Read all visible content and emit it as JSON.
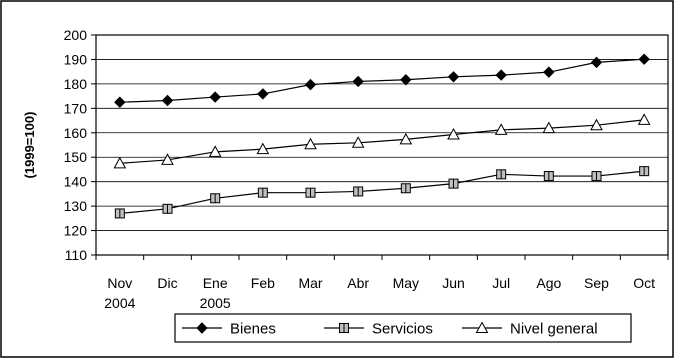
{
  "chart_data": {
    "type": "line",
    "title": "",
    "xlabel": "",
    "ylabel": "(1999=100)",
    "ylim": [
      110,
      200
    ],
    "yticks": [
      110,
      120,
      130,
      140,
      150,
      160,
      170,
      180,
      190,
      200
    ],
    "grid": true,
    "legend_position": "bottom",
    "categories": [
      [
        "Nov",
        "2004"
      ],
      [
        "Dic",
        ""
      ],
      [
        "Ene",
        "2005"
      ],
      [
        "Feb",
        ""
      ],
      [
        "Mar",
        ""
      ],
      [
        "Abr",
        ""
      ],
      [
        "May",
        ""
      ],
      [
        "Jun",
        ""
      ],
      [
        "Jul",
        ""
      ],
      [
        "Ago",
        ""
      ],
      [
        "Sep",
        ""
      ],
      [
        "Oct",
        ""
      ]
    ],
    "series": [
      {
        "name": "Bienes",
        "marker": "diamond",
        "values": [
          172.5,
          173.2,
          174.6,
          175.9,
          179.7,
          181.0,
          181.7,
          182.9,
          183.6,
          184.8,
          188.8,
          190.1
        ]
      },
      {
        "name": "Servicios",
        "marker": "square",
        "values": [
          127.0,
          128.9,
          133.2,
          135.5,
          135.5,
          136.0,
          137.3,
          139.2,
          143.0,
          142.3,
          142.3,
          144.3
        ]
      },
      {
        "name": "Nivel general",
        "marker": "triangle",
        "values": [
          147.5,
          148.9,
          152.2,
          153.3,
          155.3,
          155.9,
          157.3,
          159.3,
          161.2,
          161.9,
          163.1,
          165.3
        ]
      }
    ],
    "colors": {
      "line": "#000000",
      "square_marker_fill": "#bfbfbf",
      "diamond_marker_fill": "#000000",
      "triangle_marker_fill": "#ffffff"
    }
  }
}
